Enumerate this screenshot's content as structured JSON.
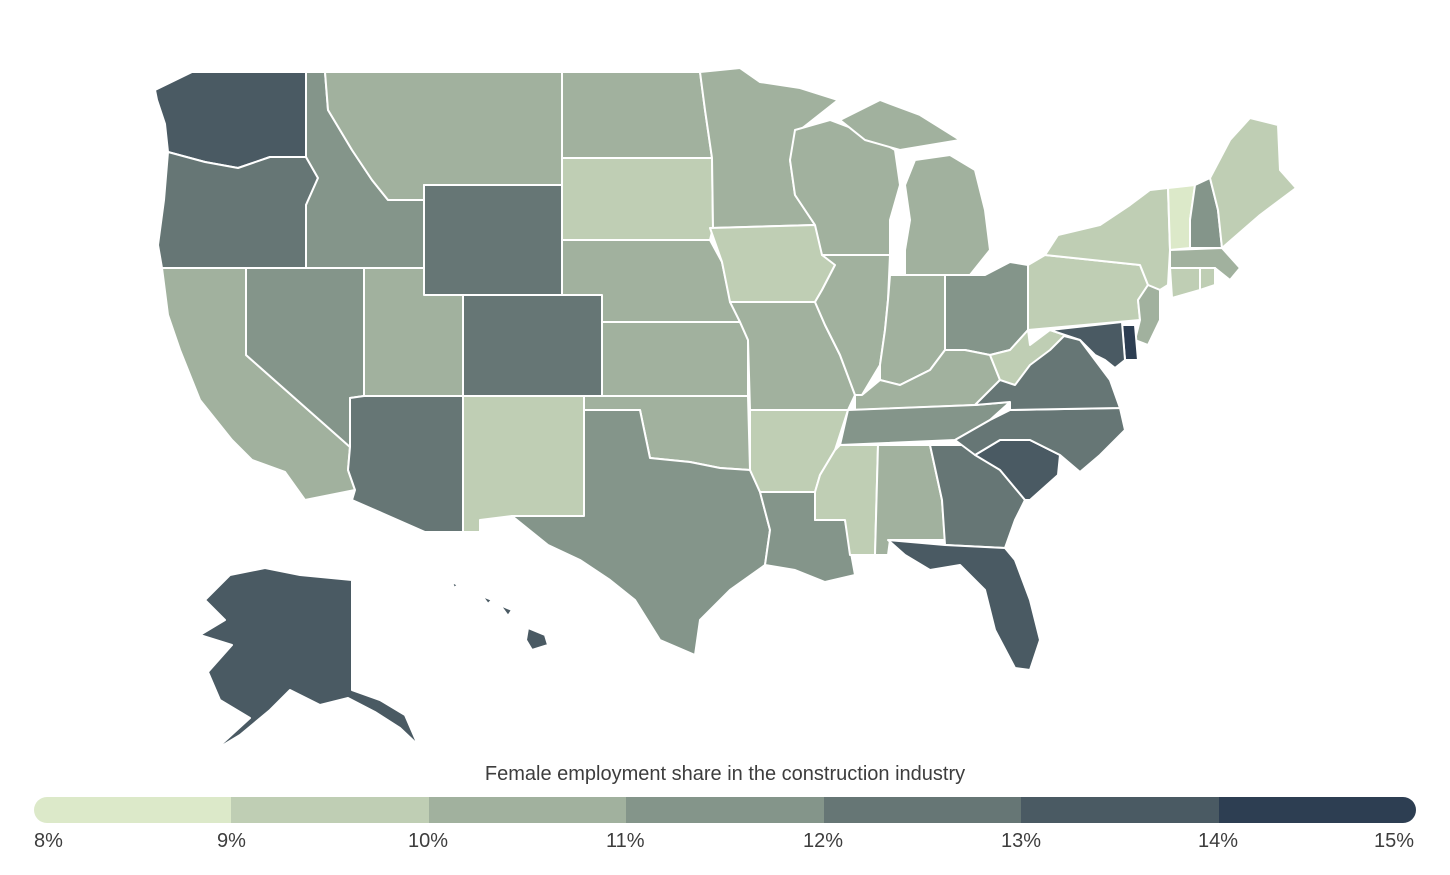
{
  "legend": {
    "title": "Female employment share in the construction industry",
    "ticks": [
      "8%",
      "9%",
      "10%",
      "11%",
      "12%",
      "13%",
      "14%",
      "15%"
    ],
    "colors": [
      "#dce9c9",
      "#bfceb4",
      "#a1b19e",
      "#84958a",
      "#667675",
      "#4a5a63",
      "#2d3e52"
    ]
  },
  "states": {
    "WA": "#4a5a63",
    "OR": "#667675",
    "CA": "#a1b19e",
    "ID": "#84958a",
    "NV": "#84958a",
    "MT": "#a1b19e",
    "WY": "#667675",
    "UT": "#a1b19e",
    "CO": "#667675",
    "AZ": "#667675",
    "NM": "#bfceb4",
    "ND": "#a1b19e",
    "SD": "#bfceb4",
    "NE": "#a1b19e",
    "KS": "#a1b19e",
    "OK": "#a1b19e",
    "TX": "#84958a",
    "MN": "#a1b19e",
    "IA": "#bfceb4",
    "MO": "#a1b19e",
    "AR": "#bfceb4",
    "LA": "#84958a",
    "WI": "#a1b19e",
    "IL": "#a1b19e",
    "MI": "#a1b19e",
    "IN": "#a1b19e",
    "OH": "#84958a",
    "KY": "#a1b19e",
    "TN": "#84958a",
    "MS": "#bfceb4",
    "AL": "#a1b19e",
    "GA": "#667675",
    "FL": "#4a5a63",
    "SC": "#4a5a63",
    "NC": "#667675",
    "VA": "#667675",
    "WV": "#bfceb4",
    "PA": "#bfceb4",
    "NY": "#bfceb4",
    "VT": "#dce9c9",
    "NH": "#84958a",
    "ME": "#bfceb4",
    "MA": "#a1b19e",
    "CT": "#bfceb4",
    "RI": "#bfceb4",
    "NJ": "#a1b19e",
    "DE": "#2d3e52",
    "MD": "#4a5a63",
    "AK": "#4a5a63",
    "HI": "#4a5a63"
  }
}
